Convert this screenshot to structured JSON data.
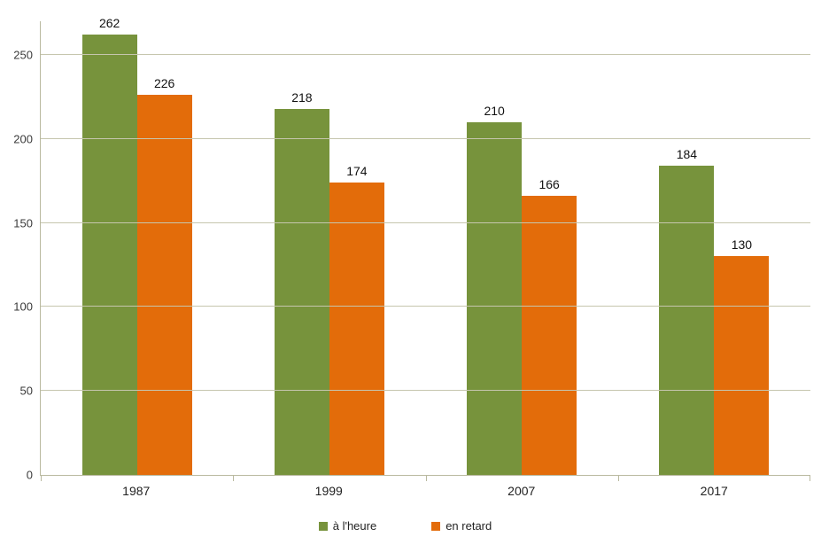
{
  "chart_data": {
    "type": "bar",
    "categories": [
      "1987",
      "1999",
      "2007",
      "2017"
    ],
    "series": [
      {
        "name": "à l'heure",
        "color": "#77933C",
        "values": [
          262,
          218,
          210,
          184
        ]
      },
      {
        "name": "en retard",
        "color": "#E36C0A",
        "values": [
          226,
          174,
          166,
          130
        ]
      }
    ],
    "title": "",
    "xlabel": "",
    "ylabel": "",
    "ylim": [
      0,
      270
    ],
    "yticks": [
      0,
      50,
      100,
      150,
      200,
      250
    ],
    "grid": true,
    "legend_position": "bottom",
    "colors": {
      "gridline": "#c6c6ae",
      "axis": "#b9b99f",
      "label_text": "#111111"
    }
  }
}
